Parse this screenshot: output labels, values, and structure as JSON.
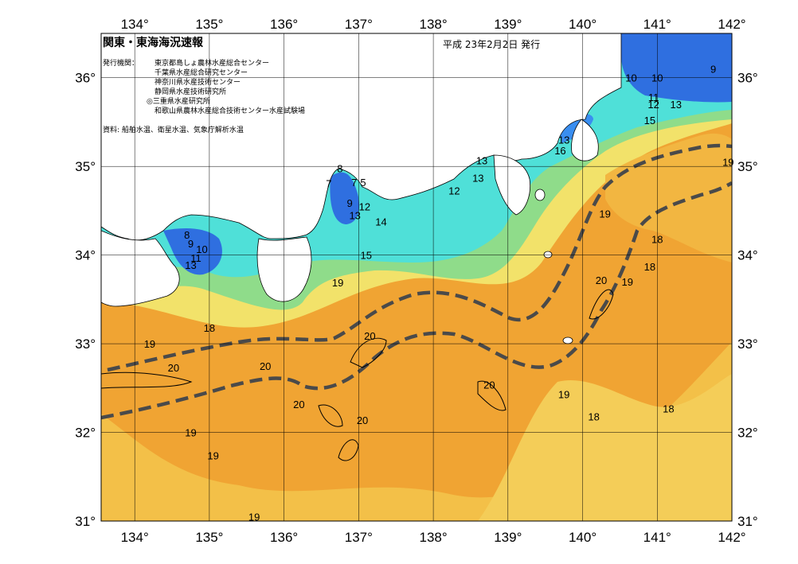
{
  "title": "関東・東海海況速報",
  "date_line": "平成 23年2月2日 発行",
  "issuer": {
    "heading": "発行機関：",
    "names": [
      "東京都島しょ農林水産総合センター",
      "千葉県水産総合研究センター",
      "神奈川県水産技術センター",
      "静岡県水産技術研究所",
      "◎三重県水産研究所",
      "和歌山県農林水産総合技術センター水産試験場"
    ]
  },
  "source": "資料: 船舶水温、衛星水温、気象庁解析水温",
  "axes": {
    "longitude_ticks": [
      "134°",
      "135°",
      "136°",
      "137°",
      "138°",
      "139°",
      "140°",
      "141°",
      "142°"
    ],
    "latitude_ticks": [
      "36°",
      "35°",
      "34°",
      "33°",
      "32°",
      "31°"
    ]
  },
  "colors": {
    "cold": "#2f6fe0",
    "cyan": "#39d7e6",
    "green": "#7ddc95",
    "yellow": "#f2e46a",
    "orange": "#f0a330",
    "deep_orange": "#ec9a2a",
    "land": "#ffffff",
    "kuroshio_axis": "#4a4a4a"
  },
  "isotherm_labels": [
    {
      "text": "10",
      "lon": 140.65,
      "lat": 36.0
    },
    {
      "text": "10",
      "lon": 141.0,
      "lat": 36.0
    },
    {
      "text": "9",
      "lon": 141.75,
      "lat": 36.1
    },
    {
      "text": "11",
      "lon": 140.95,
      "lat": 35.78
    },
    {
      "text": "12",
      "lon": 140.95,
      "lat": 35.7
    },
    {
      "text": "13",
      "lon": 141.25,
      "lat": 35.7
    },
    {
      "text": "15",
      "lon": 140.9,
      "lat": 35.52
    },
    {
      "text": "13",
      "lon": 139.75,
      "lat": 35.3
    },
    {
      "text": "16",
      "lon": 139.7,
      "lat": 35.18
    },
    {
      "text": "13",
      "lon": 138.65,
      "lat": 35.07
    },
    {
      "text": "13",
      "lon": 138.6,
      "lat": 34.87
    },
    {
      "text": "8",
      "lon": 136.75,
      "lat": 34.98
    },
    {
      "text": "7",
      "lon": 136.6,
      "lat": 34.81
    },
    {
      "text": "7",
      "lon": 136.94,
      "lat": 34.82
    },
    {
      "text": "5",
      "lon": 137.06,
      "lat": 34.82
    },
    {
      "text": "9",
      "lon": 136.88,
      "lat": 34.59
    },
    {
      "text": "12",
      "lon": 137.08,
      "lat": 34.55
    },
    {
      "text": "13",
      "lon": 136.95,
      "lat": 34.45
    },
    {
      "text": "12",
      "lon": 138.28,
      "lat": 34.73
    },
    {
      "text": "14",
      "lon": 137.3,
      "lat": 34.38
    },
    {
      "text": "15",
      "lon": 137.1,
      "lat": 34.0
    },
    {
      "text": "8",
      "lon": 134.7,
      "lat": 34.23
    },
    {
      "text": "9",
      "lon": 134.75,
      "lat": 34.13
    },
    {
      "text": "10",
      "lon": 134.9,
      "lat": 34.07
    },
    {
      "text": "11",
      "lon": 134.82,
      "lat": 33.97
    },
    {
      "text": "13",
      "lon": 134.75,
      "lat": 33.89
    },
    {
      "text": "19",
      "lon": 136.72,
      "lat": 33.69
    },
    {
      "text": "18",
      "lon": 135.0,
      "lat": 33.18
    },
    {
      "text": "19",
      "lon": 134.2,
      "lat": 33.0
    },
    {
      "text": "20",
      "lon": 134.52,
      "lat": 32.73
    },
    {
      "text": "20",
      "lon": 137.15,
      "lat": 33.09
    },
    {
      "text": "20",
      "lon": 135.75,
      "lat": 32.75
    },
    {
      "text": "20",
      "lon": 136.2,
      "lat": 32.32
    },
    {
      "text": "20",
      "lon": 137.05,
      "lat": 32.14
    },
    {
      "text": "19",
      "lon": 134.75,
      "lat": 32.0
    },
    {
      "text": "19",
      "lon": 135.05,
      "lat": 31.74
    },
    {
      "text": "19",
      "lon": 135.6,
      "lat": 31.05
    },
    {
      "text": "20",
      "lon": 138.75,
      "lat": 32.54
    },
    {
      "text": "19",
      "lon": 139.75,
      "lat": 32.43
    },
    {
      "text": "18",
      "lon": 140.15,
      "lat": 32.18
    },
    {
      "text": "18",
      "lon": 141.15,
      "lat": 32.27
    },
    {
      "text": "20",
      "lon": 140.25,
      "lat": 33.72
    },
    {
      "text": "19",
      "lon": 140.6,
      "lat": 33.7
    },
    {
      "text": "18",
      "lon": 140.9,
      "lat": 33.87
    },
    {
      "text": "18",
      "lon": 141.0,
      "lat": 34.18
    },
    {
      "text": "19",
      "lon": 140.3,
      "lat": 34.47
    },
    {
      "text": "19",
      "lon": 141.95,
      "lat": 35.05
    }
  ]
}
